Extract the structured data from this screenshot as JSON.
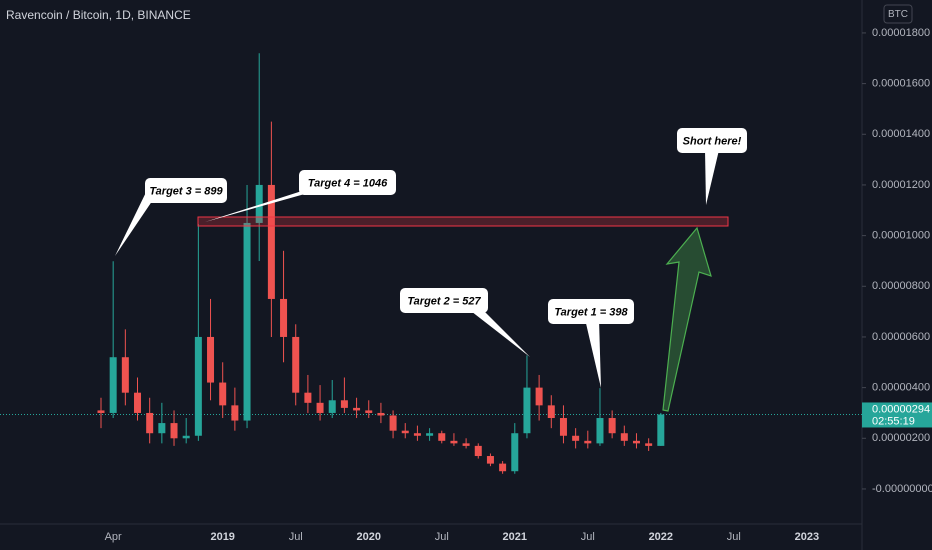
{
  "chart_data": {
    "type": "candlestick",
    "title": "Ravencoin / Bitcoin, 1D, BINANCE",
    "currency": "BTC",
    "categories": [
      null,
      "Apr",
      null,
      null,
      null,
      null,
      null,
      null,
      null,
      null,
      "2019",
      null,
      null,
      null,
      null,
      null,
      "Jul",
      null,
      null,
      null,
      null,
      null,
      "2020",
      null,
      null,
      null,
      null,
      null,
      "Jul",
      null,
      null,
      null,
      null,
      null,
      "2021",
      null,
      null,
      null,
      null,
      null,
      "Jul",
      null,
      null,
      null,
      null,
      null,
      "2022",
      null,
      null,
      null,
      null,
      null,
      "Jul",
      null,
      null,
      null,
      null,
      null,
      "2023",
      null
    ],
    "open": [
      3.1e-06,
      3e-06,
      5.2e-06,
      3.8e-06,
      3e-06,
      2.2e-06,
      2.6e-06,
      2e-06,
      2.1e-06,
      6e-06,
      4.2e-06,
      3.3e-06,
      2.7e-06,
      1.05e-05,
      1.2e-05,
      7.5e-06,
      6e-06,
      3.8e-06,
      3.4e-06,
      3e-06,
      3.5e-06,
      3.2e-06,
      3.1e-06,
      3e-06,
      2.9e-06,
      2.3e-06,
      2.2e-06,
      2.1e-06,
      2.2e-06,
      1.9e-06,
      1.8e-06,
      1.7e-06,
      1.3e-06,
      1e-06,
      7e-07,
      2.2e-06,
      4e-06,
      3.3e-06,
      2.8e-06,
      2.1e-06,
      1.9e-06,
      1.8e-06,
      2.8e-06,
      2.2e-06,
      1.9e-06,
      1.8e-06,
      1.7e-06,
      null,
      null,
      null,
      null,
      null,
      null,
      null,
      null,
      null,
      null,
      null,
      null,
      null
    ],
    "high": [
      3.6e-06,
      8.99e-06,
      6.3e-06,
      4.4e-06,
      3.6e-06,
      3.4e-06,
      3.1e-06,
      2.8e-06,
      1.046e-05,
      7.5e-06,
      5e-06,
      4e-06,
      1.2e-05,
      1.72e-05,
      1.45e-05,
      9.4e-06,
      6.5e-06,
      4.5e-06,
      4.1e-06,
      4.3e-06,
      4.4e-06,
      3.6e-06,
      3.5e-06,
      3.4e-06,
      3.1e-06,
      2.6e-06,
      2.5e-06,
      2.4e-06,
      2.3e-06,
      2.2e-06,
      2e-06,
      1.8e-06,
      1.4e-06,
      1.1e-06,
      2.6e-06,
      5.27e-06,
      4.5e-06,
      3.7e-06,
      3.3e-06,
      2.4e-06,
      2.3e-06,
      3.98e-06,
      3.1e-06,
      2.5e-06,
      2.2e-06,
      2e-06,
      3e-06,
      null,
      null,
      null,
      null,
      null,
      null,
      null,
      null,
      null,
      null,
      null,
      null,
      null
    ],
    "low": [
      2.4e-06,
      2.8e-06,
      3.3e-06,
      2.7e-06,
      1.8e-06,
      1.8e-06,
      1.7e-06,
      1.8e-06,
      1.9e-06,
      3.5e-06,
      2.8e-06,
      2.3e-06,
      2.4e-06,
      9e-06,
      6e-06,
      5e-06,
      3.3e-06,
      3e-06,
      2.7e-06,
      2.8e-06,
      3e-06,
      2.8e-06,
      2.8e-06,
      2.6e-06,
      2e-06,
      2e-06,
      1.9e-06,
      1.9e-06,
      1.8e-06,
      1.7e-06,
      1.6e-06,
      1.2e-06,
      9e-07,
      6e-07,
      6e-07,
      2e-06,
      2.7e-06,
      2.4e-06,
      1.8e-06,
      1.6e-06,
      1.6e-06,
      1.7e-06,
      2e-06,
      1.7e-06,
      1.6e-06,
      1.5e-06,
      1.7e-06,
      null,
      null,
      null,
      null,
      null,
      null,
      null,
      null,
      null,
      null,
      null,
      null,
      null
    ],
    "close": [
      3e-06,
      5.2e-06,
      3.8e-06,
      3e-06,
      2.2e-06,
      2.6e-06,
      2e-06,
      2.1e-06,
      6e-06,
      4.2e-06,
      3.3e-06,
      2.7e-06,
      1.05e-05,
      1.2e-05,
      7.5e-06,
      6e-06,
      3.8e-06,
      3.4e-06,
      3e-06,
      3.5e-06,
      3.2e-06,
      3.1e-06,
      3e-06,
      2.9e-06,
      2.3e-06,
      2.2e-06,
      2.1e-06,
      2.2e-06,
      1.9e-06,
      1.8e-06,
      1.7e-06,
      1.3e-06,
      1e-06,
      7e-07,
      2.2e-06,
      4e-06,
      3.3e-06,
      2.8e-06,
      2.1e-06,
      1.9e-06,
      1.8e-06,
      2.8e-06,
      2.2e-06,
      1.9e-06,
      1.8e-06,
      1.7e-06,
      2.94e-06,
      null,
      null,
      null,
      null,
      null,
      null,
      null,
      null,
      null,
      null,
      null,
      null,
      null
    ],
    "up_color": "#26a69a",
    "down_color": "#ef5350",
    "ylim": [
      -1.62e-06,
      1.93e-05
    ],
    "yticks": [
      {
        "value": 0,
        "label": "-0.00000000"
      },
      {
        "value": 2e-06,
        "label": "0.00000200"
      },
      {
        "value": 4e-06,
        "label": "0.00000400"
      },
      {
        "value": 6e-06,
        "label": "0.00000600"
      },
      {
        "value": 8e-06,
        "label": "0.00000800"
      },
      {
        "value": 1e-05,
        "label": "0.00001000"
      },
      {
        "value": 1.2e-05,
        "label": "0.00001200"
      },
      {
        "value": 1.4e-05,
        "label": "0.00001400"
      },
      {
        "value": 1.6e-05,
        "label": "0.00001600"
      },
      {
        "value": 1.8e-05,
        "label": "0.00001800"
      }
    ],
    "last_price": {
      "value": 2.94e-06,
      "label": "0.00000294"
    },
    "countdown": "02:55:19",
    "annotations": [
      "Target 3 = 899",
      "Target 4 = 1046",
      "Target 2 = 527",
      "Target 1 = 398",
      "Short here!"
    ]
  }
}
